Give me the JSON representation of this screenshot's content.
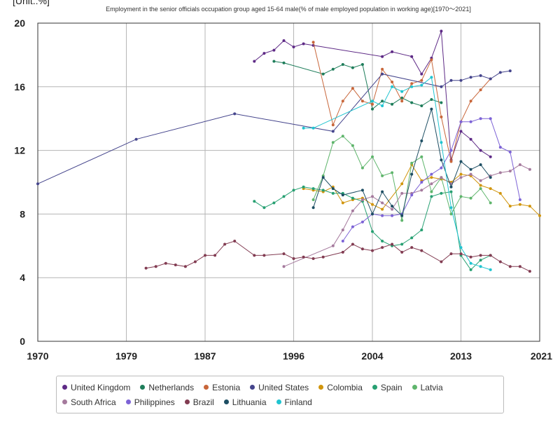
{
  "chart_data": {
    "type": "line",
    "title": "Employment in the senior officials occupation group aged 15-64 male(% of male employed population in working age)[1970～2021]",
    "unit_label": "[Unit.:%]",
    "xlim": [
      1970,
      2021
    ],
    "ylim": [
      0,
      20
    ],
    "x_ticks": [
      "1970",
      "1979",
      "1987",
      "1996",
      "2004",
      "2013",
      "2021"
    ],
    "y_ticks": [
      "0",
      "4",
      "8",
      "12",
      "16",
      "20"
    ],
    "grid": true,
    "legend_position": "bottom",
    "series": [
      {
        "name": "United Kingdom",
        "color": "#5e2a86",
        "x": [
          1992,
          1993,
          1994,
          1995,
          1996,
          1997,
          1998,
          2005,
          2006,
          2008,
          2009,
          2010,
          2011,
          2012,
          2013,
          2014,
          2015,
          2016
        ],
        "y": [
          17.6,
          18.1,
          18.3,
          18.9,
          18.5,
          18.7,
          18.6,
          17.9,
          18.2,
          17.9,
          16.8,
          17.8,
          19.5,
          11.4,
          13.2,
          12.7,
          12.0,
          11.6
        ]
      },
      {
        "name": "Netherlands",
        "color": "#1e7d5a",
        "x": [
          1994,
          1995,
          1999,
          2000,
          2001,
          2002,
          2003,
          2004,
          2005,
          2006,
          2007,
          2008,
          2009,
          2010,
          2011
        ],
        "y": [
          17.6,
          17.5,
          16.8,
          17.1,
          17.4,
          17.2,
          17.4,
          14.6,
          15.1,
          14.9,
          15.3,
          15.0,
          14.8,
          15.2,
          15.0
        ]
      },
      {
        "name": "Estonia",
        "color": "#c8663a",
        "x": [
          1998,
          2000,
          2001,
          2002,
          2003,
          2004,
          2005,
          2006,
          2007,
          2008,
          2009,
          2010,
          2011,
          2012,
          2013,
          2014,
          2015,
          2016
        ],
        "y": [
          18.8,
          13.6,
          15.1,
          15.9,
          15.1,
          14.9,
          17.1,
          16.3,
          15.1,
          16.2,
          16.4,
          17.7,
          14.1,
          11.3,
          13.8,
          15.1,
          15.8,
          16.5
        ]
      },
      {
        "name": "United States",
        "color": "#45458c",
        "x": [
          1970,
          1980,
          1990,
          2000,
          2005,
          2011,
          2012,
          2013,
          2014,
          2015,
          2016,
          2017,
          2018
        ],
        "y": [
          9.9,
          12.7,
          14.3,
          13.2,
          16.8,
          16.0,
          16.4,
          16.4,
          16.6,
          16.7,
          16.5,
          16.9,
          17.0
        ]
      },
      {
        "name": "Colombia",
        "color": "#d1950c",
        "x": [
          1997,
          1998,
          1999,
          2000,
          2001,
          2002,
          2003,
          2004,
          2005,
          2007,
          2008,
          2009,
          2010,
          2011,
          2012,
          2013,
          2014,
          2015,
          2016,
          2017,
          2018,
          2019,
          2020,
          2021
        ],
        "y": [
          9.6,
          9.5,
          9.4,
          9.7,
          8.7,
          8.9,
          9.0,
          8.6,
          8.3,
          9.9,
          11.1,
          10.1,
          10.3,
          10.2,
          10.0,
          10.5,
          10.4,
          9.8,
          9.6,
          9.3,
          8.5,
          8.6,
          8.5,
          7.9
        ]
      },
      {
        "name": "Spain",
        "color": "#27a072",
        "x": [
          1992,
          1993,
          1994,
          1995,
          1996,
          1997,
          1998,
          1999,
          2000,
          2001,
          2002,
          2003,
          2004,
          2005,
          2006,
          2007,
          2008,
          2009,
          2010,
          2011,
          2012,
          2013,
          2014,
          2015,
          2016
        ],
        "y": [
          8.8,
          8.4,
          8.7,
          9.1,
          9.5,
          9.7,
          9.6,
          9.5,
          9.3,
          9.3,
          9.0,
          8.8,
          6.9,
          6.3,
          6.0,
          6.1,
          6.5,
          7.0,
          9.1,
          9.3,
          9.4,
          5.4,
          4.5,
          5.1,
          5.4
        ]
      },
      {
        "name": "Latvia",
        "color": "#5fb56c",
        "x": [
          1998,
          1999,
          2000,
          2001,
          2002,
          2003,
          2004,
          2005,
          2006,
          2007,
          2008,
          2009,
          2010,
          2011,
          2012,
          2013,
          2014,
          2015,
          2016
        ],
        "y": [
          8.9,
          10.4,
          12.5,
          12.9,
          12.3,
          10.9,
          11.6,
          10.4,
          10.6,
          7.6,
          11.2,
          11.6,
          9.4,
          10.3,
          8.0,
          9.1,
          9.0,
          9.6,
          8.7
        ]
      },
      {
        "name": "South Africa",
        "color": "#a57a9d",
        "x": [
          1995,
          2000,
          2001,
          2002,
          2003,
          2004,
          2005,
          2006,
          2007,
          2008,
          2009,
          2010,
          2011,
          2012,
          2013,
          2014,
          2015,
          2016,
          2017,
          2018,
          2019,
          2020
        ],
        "y": [
          4.7,
          6.0,
          7.0,
          8.2,
          8.9,
          9.1,
          8.7,
          8.3,
          9.3,
          9.3,
          9.5,
          9.9,
          10.3,
          9.9,
          10.3,
          10.5,
          10.1,
          10.4,
          10.6,
          10.7,
          11.1,
          10.8
        ]
      },
      {
        "name": "Philippines",
        "color": "#7d63d6",
        "x": [
          2001,
          2002,
          2003,
          2004,
          2005,
          2006,
          2007,
          2008,
          2009,
          2010,
          2011,
          2012,
          2013,
          2014,
          2015,
          2016,
          2017,
          2018,
          2019
        ],
        "y": [
          6.3,
          7.2,
          7.5,
          8.0,
          7.9,
          7.9,
          8.0,
          9.2,
          10.0,
          10.5,
          10.9,
          12.0,
          13.8,
          13.8,
          14.0,
          14.0,
          12.2,
          11.9,
          8.9
        ]
      },
      {
        "name": "Brazil",
        "color": "#823c52",
        "x": [
          1981,
          1982,
          1983,
          1984,
          1985,
          1986,
          1987,
          1988,
          1989,
          1990,
          1992,
          1993,
          1995,
          1996,
          1997,
          1998,
          1999,
          2001,
          2002,
          2003,
          2004,
          2005,
          2006,
          2007,
          2008,
          2009,
          2011,
          2012,
          2013,
          2014,
          2015,
          2016,
          2017,
          2018,
          2019,
          2020
        ],
        "y": [
          4.6,
          4.7,
          4.9,
          4.8,
          4.7,
          5.0,
          5.4,
          5.4,
          6.1,
          6.3,
          5.4,
          5.4,
          5.5,
          5.2,
          5.3,
          5.2,
          5.3,
          5.6,
          6.1,
          5.8,
          5.7,
          5.9,
          6.1,
          5.6,
          5.9,
          5.7,
          5.0,
          5.5,
          5.5,
          5.3,
          5.4,
          5.4,
          5.0,
          4.7,
          4.7,
          4.4
        ]
      },
      {
        "name": "Lithuania",
        "color": "#1d4e63",
        "x": [
          1998,
          1999,
          2000,
          2001,
          2003,
          2004,
          2005,
          2006,
          2007,
          2008,
          2009,
          2010,
          2011,
          2012,
          2013,
          2014,
          2015,
          2016
        ],
        "y": [
          8.4,
          10.3,
          9.6,
          9.2,
          9.5,
          8.0,
          9.4,
          8.5,
          7.9,
          10.5,
          12.6,
          14.6,
          11.4,
          9.7,
          11.3,
          10.8,
          11.1,
          10.3
        ]
      },
      {
        "name": "Finland",
        "color": "#20c4d0",
        "x": [
          1997,
          1998,
          2004,
          2005,
          2006,
          2007,
          2008,
          2009,
          2010,
          2011,
          2012,
          2013,
          2014,
          2015,
          2016
        ],
        "y": [
          13.4,
          13.4,
          15.1,
          14.8,
          16.0,
          15.7,
          16.0,
          16.1,
          16.6,
          12.5,
          8.4,
          5.9,
          4.9,
          4.7,
          4.5
        ]
      }
    ]
  }
}
